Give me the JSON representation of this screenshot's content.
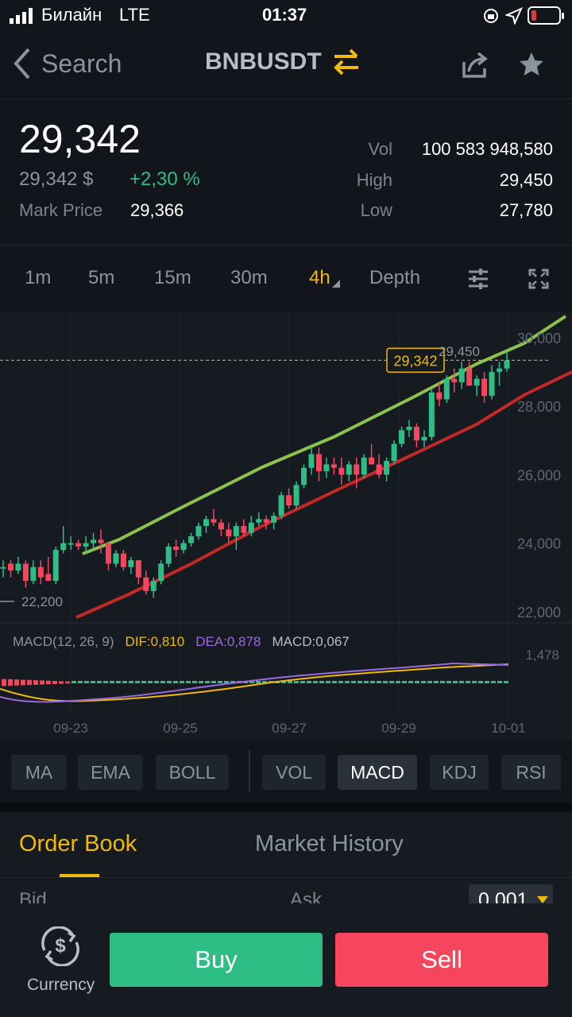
{
  "status_bar": {
    "carrier": "Билайн",
    "network": "LTE",
    "time": "01:37"
  },
  "nav": {
    "back_label": "Search",
    "pair": "BNBUSDT"
  },
  "header": {
    "price": "29,342",
    "price_usd": "29,342 $",
    "change": "+2,30 %",
    "mark_price_label": "Mark Price",
    "mark_price": "29,366",
    "vol_label": "Vol",
    "vol": "100 583 948,580",
    "high_label": "High",
    "high": "29,450",
    "low_label": "Low",
    "low": "27,780"
  },
  "timeframes": [
    "1m",
    "5m",
    "15m",
    "30m",
    "4h",
    "Depth"
  ],
  "active_timeframe": "4h",
  "chart_data": {
    "type": "candlestick",
    "y_ticks": [
      "30,000",
      "28,000",
      "26,000",
      "24,000",
      "22,000"
    ],
    "x_ticks": [
      "09-23",
      "09-25",
      "09-27",
      "09-29",
      "10-01"
    ],
    "current_price_label": "29,342",
    "high_marker": "29,450",
    "low_marker": "22,200",
    "candles": [
      [
        23.3,
        23.5,
        23.0,
        23.3
      ],
      [
        23.4,
        23.5,
        23.0,
        23.2
      ],
      [
        23.2,
        23.6,
        23.1,
        23.4
      ],
      [
        23.4,
        23.5,
        22.7,
        22.9
      ],
      [
        22.9,
        23.5,
        22.8,
        23.3
      ],
      [
        23.3,
        23.5,
        22.8,
        23.0
      ],
      [
        23.1,
        23.6,
        22.9,
        22.9
      ],
      [
        22.9,
        23.9,
        22.8,
        23.8
      ],
      [
        23.8,
        24.5,
        23.7,
        24.0
      ],
      [
        24.0,
        24.2,
        23.8,
        24.0
      ],
      [
        24.0,
        24.1,
        23.8,
        23.9
      ],
      [
        23.9,
        24.2,
        23.7,
        24.0
      ],
      [
        24.0,
        24.3,
        23.8,
        24.1
      ],
      [
        24.1,
        24.4,
        23.7,
        24.0
      ],
      [
        24.0,
        24.0,
        23.2,
        23.4
      ],
      [
        23.4,
        23.8,
        23.3,
        23.7
      ],
      [
        23.7,
        23.8,
        23.2,
        23.3
      ],
      [
        23.3,
        23.6,
        23.1,
        23.5
      ],
      [
        23.5,
        23.5,
        22.8,
        23.0
      ],
      [
        23.0,
        23.2,
        22.5,
        22.6
      ],
      [
        22.6,
        23.0,
        22.4,
        22.9
      ],
      [
        22.9,
        23.5,
        22.8,
        23.4
      ],
      [
        23.4,
        24.0,
        23.3,
        23.9
      ],
      [
        23.9,
        24.1,
        23.6,
        23.8
      ],
      [
        23.8,
        24.1,
        23.7,
        24.0
      ],
      [
        24.0,
        24.3,
        23.9,
        24.2
      ],
      [
        24.2,
        24.6,
        24.1,
        24.5
      ],
      [
        24.5,
        24.8,
        24.3,
        24.7
      ],
      [
        24.7,
        25.0,
        24.5,
        24.6
      ],
      [
        24.6,
        24.7,
        24.2,
        24.4
      ],
      [
        24.4,
        24.6,
        24.0,
        24.2
      ],
      [
        24.2,
        24.6,
        23.8,
        24.5
      ],
      [
        24.5,
        24.7,
        24.2,
        24.3
      ],
      [
        24.3,
        24.8,
        24.2,
        24.6
      ],
      [
        24.6,
        24.9,
        24.5,
        24.7
      ],
      [
        24.7,
        24.8,
        24.4,
        24.6
      ],
      [
        24.6,
        24.9,
        24.4,
        24.8
      ],
      [
        24.8,
        25.5,
        24.7,
        25.4
      ],
      [
        25.4,
        25.6,
        25.0,
        25.1
      ],
      [
        25.1,
        25.8,
        25.0,
        25.7
      ],
      [
        25.7,
        26.3,
        25.6,
        26.2
      ],
      [
        26.2,
        26.8,
        26.0,
        26.6
      ],
      [
        26.6,
        26.8,
        25.8,
        26.1
      ],
      [
        26.1,
        26.5,
        25.9,
        26.3
      ],
      [
        26.3,
        26.5,
        26.0,
        26.2
      ],
      [
        26.2,
        26.5,
        25.7,
        26.0
      ],
      [
        26.0,
        26.4,
        25.8,
        26.3
      ],
      [
        26.3,
        26.5,
        25.6,
        26.0
      ],
      [
        26.0,
        26.6,
        25.9,
        26.5
      ],
      [
        26.5,
        26.9,
        26.3,
        26.3
      ],
      [
        26.3,
        26.6,
        25.9,
        26.0
      ],
      [
        26.0,
        26.5,
        25.8,
        26.4
      ],
      [
        26.4,
        27.0,
        26.3,
        26.9
      ],
      [
        26.9,
        27.4,
        26.8,
        27.3
      ],
      [
        27.3,
        27.6,
        27.1,
        27.4
      ],
      [
        27.4,
        27.5,
        26.8,
        27.0
      ],
      [
        27.0,
        27.3,
        26.8,
        27.1
      ],
      [
        27.1,
        28.5,
        27.0,
        28.4
      ],
      [
        28.4,
        28.7,
        28.0,
        28.2
      ],
      [
        28.2,
        28.9,
        28.1,
        28.8
      ],
      [
        28.8,
        29.1,
        28.4,
        28.7
      ],
      [
        28.7,
        29.3,
        28.5,
        29.1
      ],
      [
        29.1,
        29.3,
        28.6,
        28.6
      ],
      [
        28.6,
        28.9,
        28.3,
        28.8
      ],
      [
        28.8,
        29.0,
        28.1,
        28.3
      ],
      [
        28.3,
        29.2,
        28.2,
        29.0
      ],
      [
        29.0,
        29.3,
        28.6,
        29.1
      ],
      [
        29.1,
        29.6,
        29.0,
        29.34
      ]
    ],
    "upper_band_color": "#8bc34a",
    "lower_band_color": "#c62828",
    "macd": {
      "label": "MACD(12, 26, 9)",
      "dif": "DIF:0,810",
      "dea": "DEA:0,878",
      "macd": "MACD:0,067",
      "tick": "1,478"
    }
  },
  "indicators": [
    "MA",
    "EMA",
    "BOLL",
    "VOL",
    "MACD",
    "KDJ",
    "RSI"
  ],
  "active_indicator": "MACD",
  "tabs": {
    "order_book": "Order Book",
    "market_history": "Market History"
  },
  "order_book": {
    "bid": "Bid",
    "ask": "Ask",
    "precision": "0,001"
  },
  "bottom": {
    "currency": "Currency",
    "buy": "Buy",
    "sell": "Sell"
  },
  "colors": {
    "up": "#2ebd85",
    "down": "#f6465d",
    "accent": "#f0b90b",
    "bg": "#12161c"
  }
}
